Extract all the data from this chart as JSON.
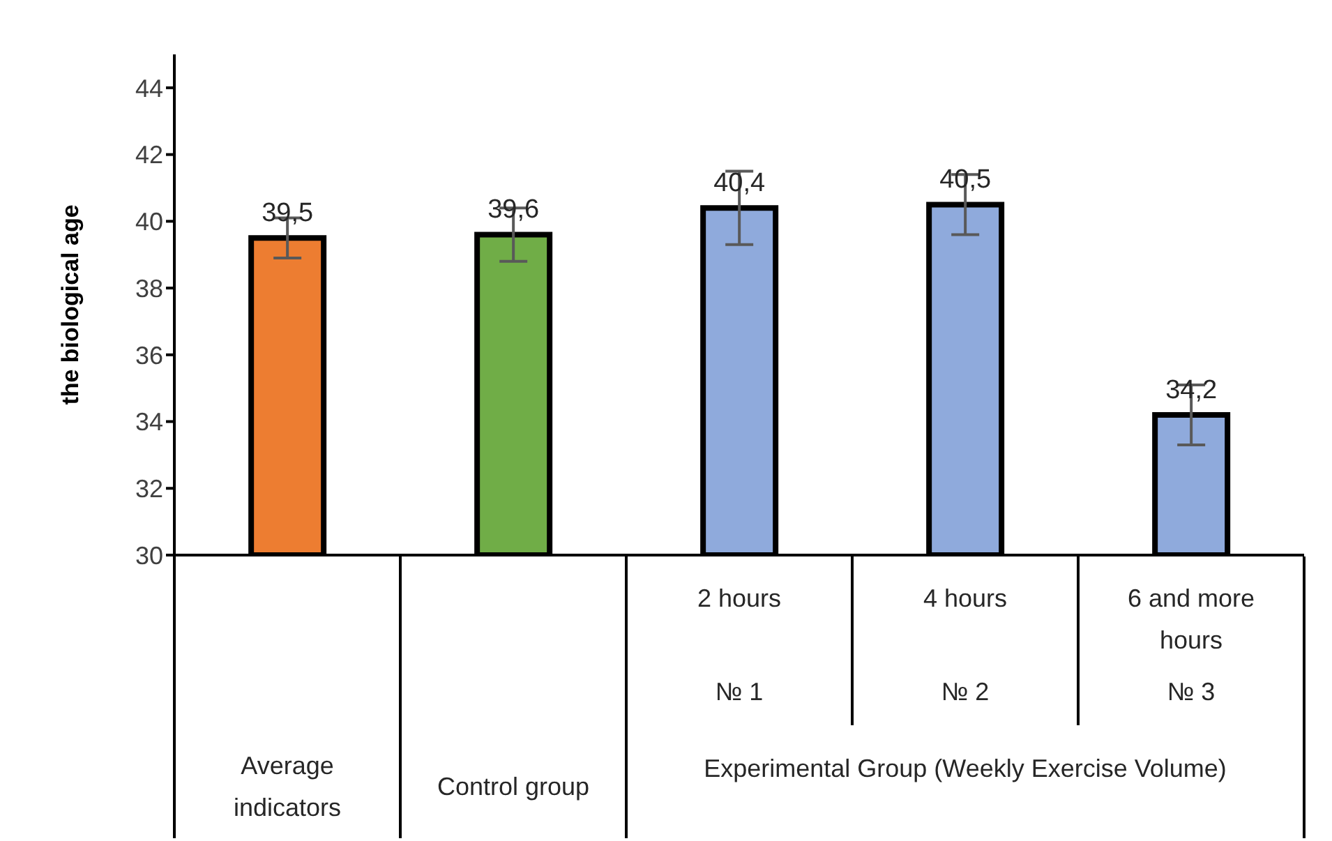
{
  "chart_data": {
    "type": "bar",
    "ylabel": "the biological age",
    "categories": [
      null,
      null,
      "2 hours",
      "4 hours",
      "6 and more hours"
    ],
    "values": [
      39.5,
      39.6,
      40.4,
      40.5,
      34.2
    ],
    "errors": [
      0.6,
      0.8,
      1.1,
      0.9,
      0.9
    ],
    "value_labels": [
      "39,5",
      "39,6",
      "40,4",
      "40,5",
      "34,2"
    ],
    "colors": [
      "#ed7d31",
      "#70ad47",
      "#8faadc",
      "#8faadc",
      "#8faadc"
    ],
    "ylim": [
      30,
      45
    ],
    "yticks": [
      30,
      32,
      34,
      36,
      38,
      40,
      42,
      44
    ],
    "annotations": [
      "№ 1",
      "№ 2",
      "№ 3",
      "Average indicators",
      "Control group",
      "Experimental Group (Weekly Exercise Volume)"
    ]
  }
}
